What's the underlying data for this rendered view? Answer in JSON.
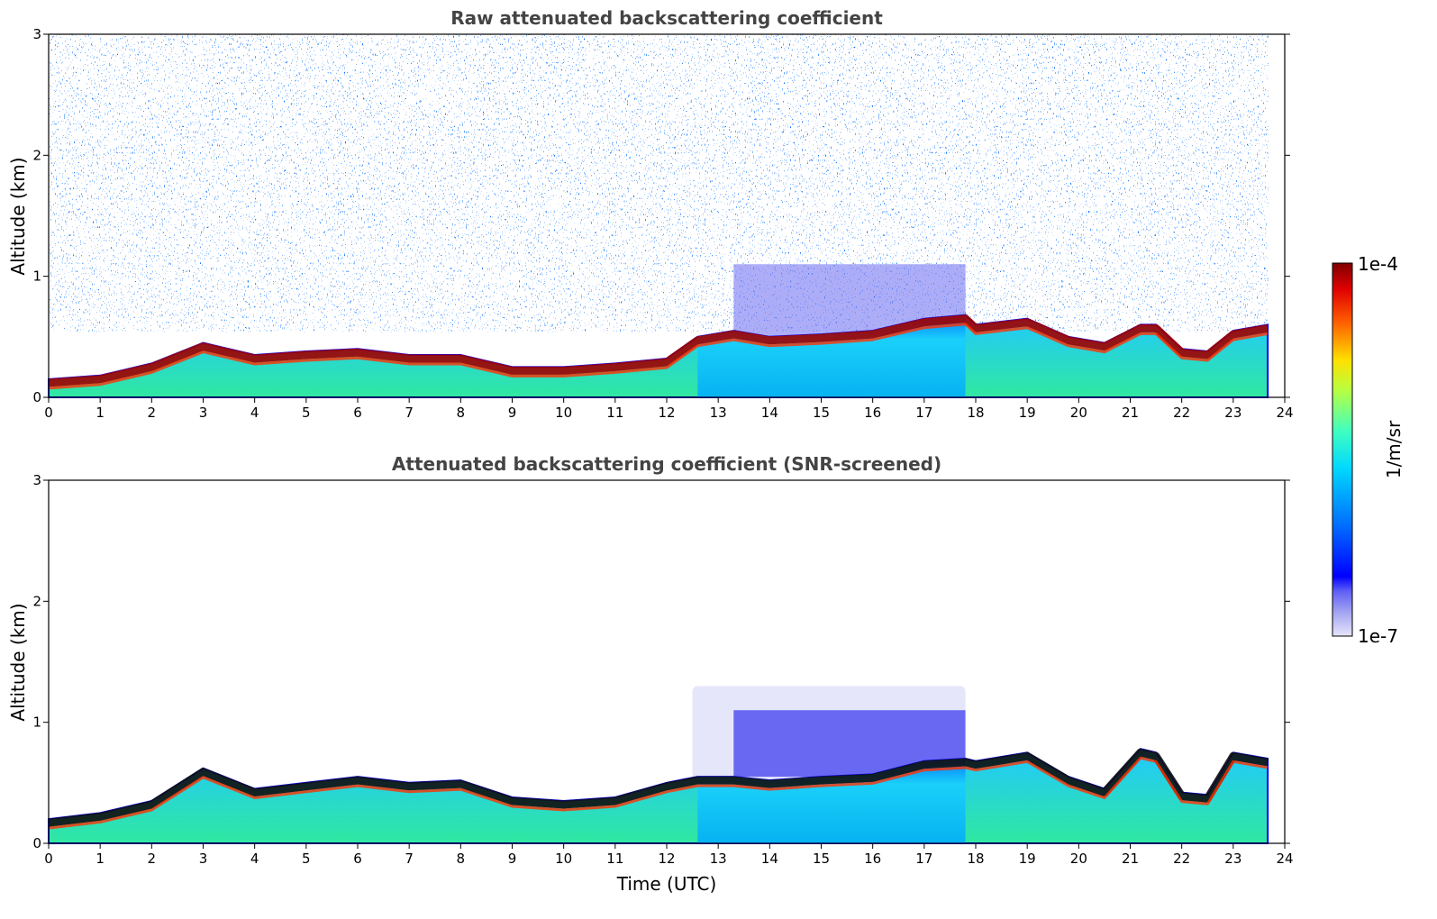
{
  "chart_data": [
    {
      "type": "heatmap",
      "title": "Raw attenuated backscattering coefficient",
      "xlabel": "",
      "ylabel": "Altitude (km)",
      "xlim": [
        0,
        24
      ],
      "ylim": [
        0,
        3
      ],
      "xticks": [
        "0",
        "1",
        "2",
        "3",
        "4",
        "5",
        "6",
        "7",
        "8",
        "9",
        "10",
        "11",
        "12",
        "13",
        "14",
        "15",
        "16",
        "17",
        "18",
        "19",
        "20",
        "21",
        "22",
        "23",
        "24"
      ],
      "yticks": [
        "0",
        "1",
        "2",
        "3"
      ],
      "data_end_time": 23.67,
      "noise_extent": "full column",
      "layer_top_km": [
        [
          0,
          0.15
        ],
        [
          1,
          0.18
        ],
        [
          2,
          0.28
        ],
        [
          3,
          0.45
        ],
        [
          4,
          0.35
        ],
        [
          5,
          0.38
        ],
        [
          6,
          0.4
        ],
        [
          7,
          0.35
        ],
        [
          8,
          0.35
        ],
        [
          9,
          0.25
        ],
        [
          10,
          0.25
        ],
        [
          11,
          0.28
        ],
        [
          12,
          0.32
        ],
        [
          12.6,
          0.5
        ],
        [
          13.3,
          0.55
        ],
        [
          14,
          0.5
        ],
        [
          15,
          0.52
        ],
        [
          16,
          0.55
        ],
        [
          17,
          0.65
        ],
        [
          17.8,
          0.68
        ],
        [
          18,
          0.6
        ],
        [
          19,
          0.65
        ],
        [
          19.8,
          0.5
        ],
        [
          20.5,
          0.45
        ],
        [
          21.2,
          0.6
        ],
        [
          21.5,
          0.6
        ],
        [
          22,
          0.4
        ],
        [
          22.5,
          0.38
        ],
        [
          23,
          0.55
        ],
        [
          23.67,
          0.6
        ]
      ],
      "aerosol_layer_km": [
        13.3,
        17.8,
        0.5,
        1.1
      ]
    },
    {
      "type": "heatmap",
      "title": "Attenuated backscattering coefficient (SNR-screened)",
      "xlabel": "Time (UTC)",
      "ylabel": "Altitude (km)",
      "xlim": [
        0,
        24
      ],
      "ylim": [
        0,
        3
      ],
      "xticks": [
        "0",
        "1",
        "2",
        "3",
        "4",
        "5",
        "6",
        "7",
        "8",
        "9",
        "10",
        "11",
        "12",
        "13",
        "14",
        "15",
        "16",
        "17",
        "18",
        "19",
        "20",
        "21",
        "22",
        "23",
        "24"
      ],
      "yticks": [
        "0",
        "1",
        "2",
        "3"
      ],
      "data_end_time": 23.67,
      "noise_extent": "screened",
      "layer_top_km": [
        [
          0,
          0.2
        ],
        [
          1,
          0.25
        ],
        [
          2,
          0.35
        ],
        [
          3,
          0.62
        ],
        [
          4,
          0.45
        ],
        [
          5,
          0.5
        ],
        [
          6,
          0.55
        ],
        [
          7,
          0.5
        ],
        [
          8,
          0.52
        ],
        [
          9,
          0.38
        ],
        [
          10,
          0.35
        ],
        [
          11,
          0.38
        ],
        [
          12,
          0.5
        ],
        [
          12.6,
          0.55
        ],
        [
          13.3,
          0.55
        ],
        [
          14,
          0.52
        ],
        [
          15,
          0.55
        ],
        [
          16,
          0.57
        ],
        [
          17,
          0.68
        ],
        [
          17.8,
          0.7
        ],
        [
          18,
          0.68
        ],
        [
          19,
          0.75
        ],
        [
          19.8,
          0.55
        ],
        [
          20.5,
          0.45
        ],
        [
          21.2,
          0.78
        ],
        [
          21.5,
          0.75
        ],
        [
          22,
          0.42
        ],
        [
          22.5,
          0.4
        ],
        [
          23,
          0.75
        ],
        [
          23.67,
          0.7
        ]
      ],
      "aerosol_layer_km": [
        13.3,
        17.8,
        0.55,
        1.1
      ],
      "screened_envelope_km": [
        12.5,
        17.8,
        0.5,
        1.3
      ]
    }
  ],
  "colorbar": {
    "label": "1/m/sr",
    "max_label": "1e-4",
    "min_label": "1e-7",
    "scale": "log",
    "range": [
      1e-07,
      0.0001
    ],
    "colormap": "jet",
    "low_colors": [
      "#e6e6fa",
      "#c8c8f5",
      "#a0a0f0",
      "#7878f0",
      "#5050f0",
      "#0000ff"
    ]
  }
}
